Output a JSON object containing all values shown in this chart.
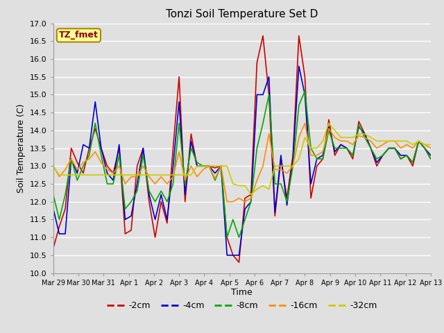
{
  "title": "Tonzi Soil Temperature Set D",
  "xlabel": "Time",
  "ylabel": "Soil Temperature (C)",
  "ylim": [
    10.0,
    17.0
  ],
  "yticks": [
    10.0,
    10.5,
    11.0,
    11.5,
    12.0,
    12.5,
    13.0,
    13.5,
    14.0,
    14.5,
    15.0,
    15.5,
    16.0,
    16.5,
    17.0
  ],
  "xtick_labels": [
    "Mar 29",
    "Mar 30",
    "Mar 31",
    "Apr 1",
    "Apr 2",
    "Apr 3",
    "Apr 4",
    "Apr 5",
    "Apr 6",
    "Apr 7",
    "Apr 8",
    "Apr 9",
    "Apr 10",
    "Apr 11",
    "Apr 12",
    "Apr 13"
  ],
  "annotation_text": "TZ_fmet",
  "annotation_color": "#8B0000",
  "annotation_bg": "#FFFF99",
  "line_colors": [
    "#CC0000",
    "#0000CC",
    "#00AA00",
    "#FF8C00",
    "#CCCC00"
  ],
  "line_labels": [
    "-2cm",
    "-4cm",
    "-8cm",
    "-16cm",
    "-32cm"
  ],
  "background_color": "#E0E0E0",
  "grid_color": "#FFFFFF",
  "t_2cm": [
    10.7,
    11.3,
    11.8,
    13.5,
    13.1,
    12.8,
    13.5,
    14.05,
    13.5,
    13.0,
    12.8,
    13.5,
    11.1,
    11.2,
    13.0,
    13.5,
    12.0,
    11.0,
    12.0,
    11.4,
    13.5,
    15.5,
    12.0,
    13.9,
    13.0,
    13.0,
    13.0,
    12.95,
    13.0,
    11.0,
    10.5,
    10.3,
    12.1,
    12.2,
    15.9,
    16.65,
    15.0,
    11.6,
    13.2,
    12.1,
    13.3,
    16.65,
    15.5,
    12.1,
    13.0,
    13.2,
    14.3,
    13.3,
    13.6,
    13.5,
    13.2,
    14.25,
    13.9,
    13.5,
    13.0,
    13.3,
    13.5,
    13.5,
    13.2,
    13.3,
    13.0,
    13.7,
    13.5,
    13.2
  ],
  "t_4cm": [
    11.8,
    11.1,
    11.1,
    13.2,
    12.8,
    13.6,
    13.5,
    14.8,
    13.5,
    12.8,
    12.6,
    13.6,
    11.5,
    11.6,
    12.5,
    13.5,
    12.2,
    11.5,
    12.2,
    11.5,
    13.0,
    14.8,
    12.2,
    13.7,
    13.0,
    13.0,
    13.0,
    12.8,
    13.0,
    10.5,
    10.5,
    10.5,
    11.8,
    12.0,
    15.0,
    15.0,
    15.5,
    11.7,
    13.3,
    11.9,
    13.2,
    15.8,
    15.0,
    12.5,
    13.2,
    13.3,
    14.1,
    13.4,
    13.6,
    13.5,
    13.3,
    14.1,
    13.9,
    13.5,
    13.1,
    13.3,
    13.5,
    13.5,
    13.3,
    13.3,
    13.1,
    13.7,
    13.5,
    13.3
  ],
  "t_8cm": [
    12.2,
    11.5,
    12.2,
    13.2,
    12.6,
    13.0,
    13.3,
    14.2,
    13.3,
    12.5,
    12.5,
    13.3,
    11.8,
    12.0,
    12.3,
    13.3,
    12.3,
    12.0,
    12.3,
    12.0,
    12.5,
    14.2,
    12.5,
    13.5,
    13.1,
    13.0,
    13.0,
    12.6,
    13.0,
    11.0,
    11.5,
    11.0,
    11.5,
    12.0,
    13.5,
    14.2,
    15.0,
    12.5,
    12.5,
    12.0,
    13.0,
    14.7,
    15.1,
    13.5,
    13.2,
    13.2,
    14.0,
    13.5,
    13.5,
    13.5,
    13.3,
    14.15,
    13.8,
    13.5,
    13.2,
    13.3,
    13.5,
    13.5,
    13.2,
    13.3,
    13.1,
    13.7,
    13.5,
    13.2
  ],
  "t_16cm": [
    13.0,
    12.7,
    12.9,
    13.2,
    12.9,
    13.1,
    13.2,
    13.4,
    13.1,
    12.9,
    12.8,
    13.0,
    12.5,
    12.7,
    12.7,
    13.0,
    12.7,
    12.5,
    12.7,
    12.5,
    12.7,
    13.4,
    12.6,
    13.0,
    12.7,
    12.9,
    13.0,
    12.65,
    13.0,
    12.0,
    12.0,
    12.1,
    12.0,
    12.1,
    12.6,
    13.0,
    13.9,
    12.9,
    12.9,
    12.8,
    13.0,
    13.8,
    14.2,
    13.3,
    13.3,
    13.4,
    14.05,
    13.8,
    13.7,
    13.7,
    13.6,
    13.85,
    13.8,
    13.7,
    13.5,
    13.6,
    13.7,
    13.7,
    13.5,
    13.6,
    13.5,
    13.7,
    13.6,
    13.5
  ],
  "t_32cm": [
    13.0,
    12.75,
    12.75,
    12.75,
    12.75,
    12.75,
    12.75,
    12.75,
    12.75,
    12.75,
    12.75,
    12.75,
    12.75,
    12.75,
    12.75,
    12.75,
    12.75,
    12.75,
    12.75,
    12.75,
    12.75,
    12.75,
    12.75,
    12.75,
    13.0,
    13.0,
    13.0,
    13.0,
    13.0,
    13.0,
    12.5,
    12.45,
    12.45,
    12.2,
    12.35,
    12.45,
    12.35,
    13.0,
    13.0,
    13.0,
    13.0,
    13.2,
    13.8,
    13.5,
    13.5,
    13.7,
    14.2,
    14.0,
    13.8,
    13.8,
    13.8,
    13.9,
    13.9,
    13.8,
    13.7,
    13.7,
    13.7,
    13.7,
    13.7,
    13.7,
    13.6,
    13.7,
    13.6,
    13.6
  ]
}
